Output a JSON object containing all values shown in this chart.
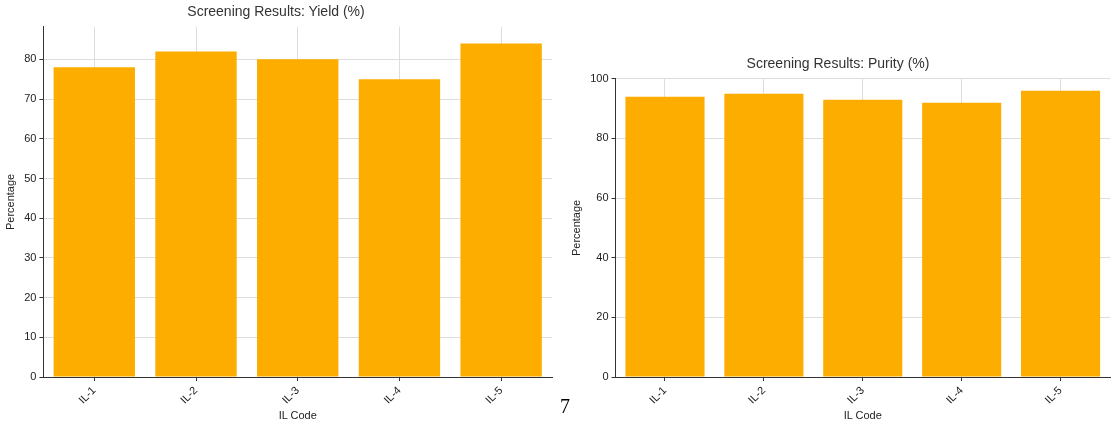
{
  "chart_data": [
    {
      "type": "bar",
      "title": "Screening Results: Yield (%)",
      "xlabel": "IL Code",
      "ylabel": "Percentage",
      "categories": [
        "IL-1",
        "IL-2",
        "IL-3",
        "IL-4",
        "IL-5"
      ],
      "values": [
        78,
        82,
        80,
        75,
        84
      ],
      "color": "#fdad00",
      "ylim": [
        0,
        88.2
      ],
      "yticks": [
        0,
        10,
        20,
        30,
        40,
        50,
        60,
        70,
        80
      ],
      "grid": true,
      "annotations": [
        "7"
      ]
    },
    {
      "type": "bar",
      "title": "Screening Results: Purity (%)",
      "xlabel": "IL Code",
      "ylabel": "Percentage",
      "categories": [
        "IL-1",
        "IL-2",
        "IL-3",
        "IL-4",
        "IL-5"
      ],
      "values": [
        94,
        95,
        93,
        92,
        96
      ],
      "color": "#fdad00",
      "ylim": [
        0,
        100
      ],
      "yticks": [
        0,
        20,
        40,
        60,
        80,
        100
      ],
      "grid": true
    }
  ]
}
